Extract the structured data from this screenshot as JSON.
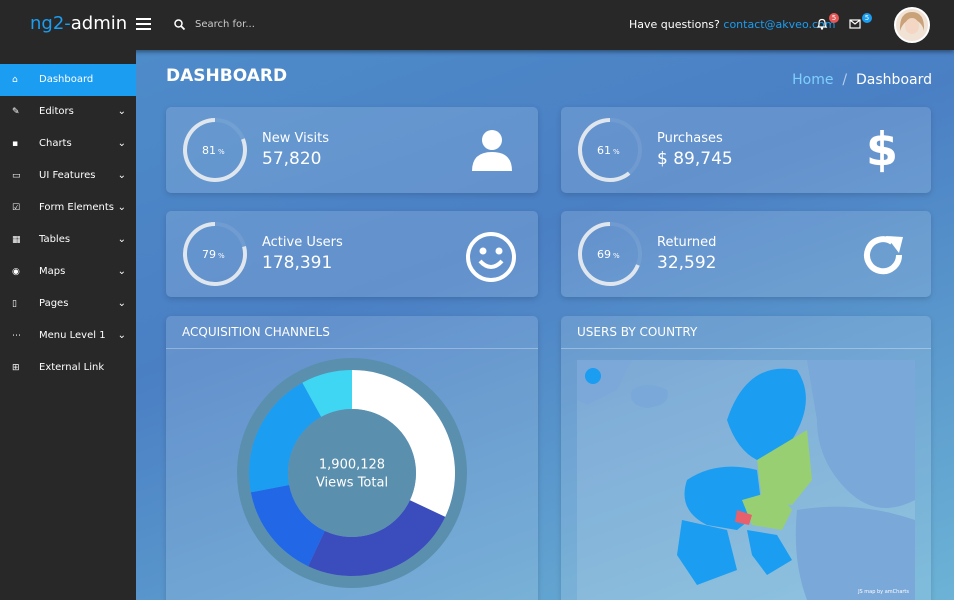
{
  "header": {
    "logo_a": "ng2-",
    "logo_b": "admin",
    "search_placeholder": "Search for...",
    "questions": "Have questions?",
    "email": "contact@akveo.com",
    "notifications": 5,
    "messages": 5
  },
  "sidebar": {
    "items": [
      "Dashboard",
      "Editors",
      "Charts",
      "UI Features",
      "Form Elements",
      "Tables",
      "Maps",
      "Pages",
      "Menu Level 1",
      "External Link"
    ]
  },
  "page": {
    "title": "DASHBOARD",
    "breadcrumb": [
      "Home",
      "Dashboard"
    ]
  },
  "stats": [
    {
      "label": "New Visits",
      "value": "57,820",
      "percent": 81,
      "unit": "%"
    },
    {
      "label": "Purchases",
      "value": "$ 89,745",
      "percent": 61,
      "unit": "%"
    },
    {
      "label": "Active Users",
      "value": "178,391",
      "percent": 79,
      "unit": "%"
    },
    {
      "label": "Returned",
      "value": "32,592",
      "percent": 69,
      "unit": "%"
    }
  ],
  "acquisition": {
    "title": "ACQUISITION CHANNELS",
    "total": "1,900,128",
    "total_label": "Views Total",
    "segments": [
      {
        "color": "#ffffff",
        "value": 32
      },
      {
        "color": "#3b4cbc",
        "value": 25
      },
      {
        "color": "#2167e6",
        "value": 15
      },
      {
        "color": "#1b9df1",
        "value": 20
      },
      {
        "color": "#3fd6f3",
        "value": 8
      }
    ]
  },
  "country": {
    "title": "USERS BY COUNTRY",
    "credit": "JS map by amCharts"
  }
}
